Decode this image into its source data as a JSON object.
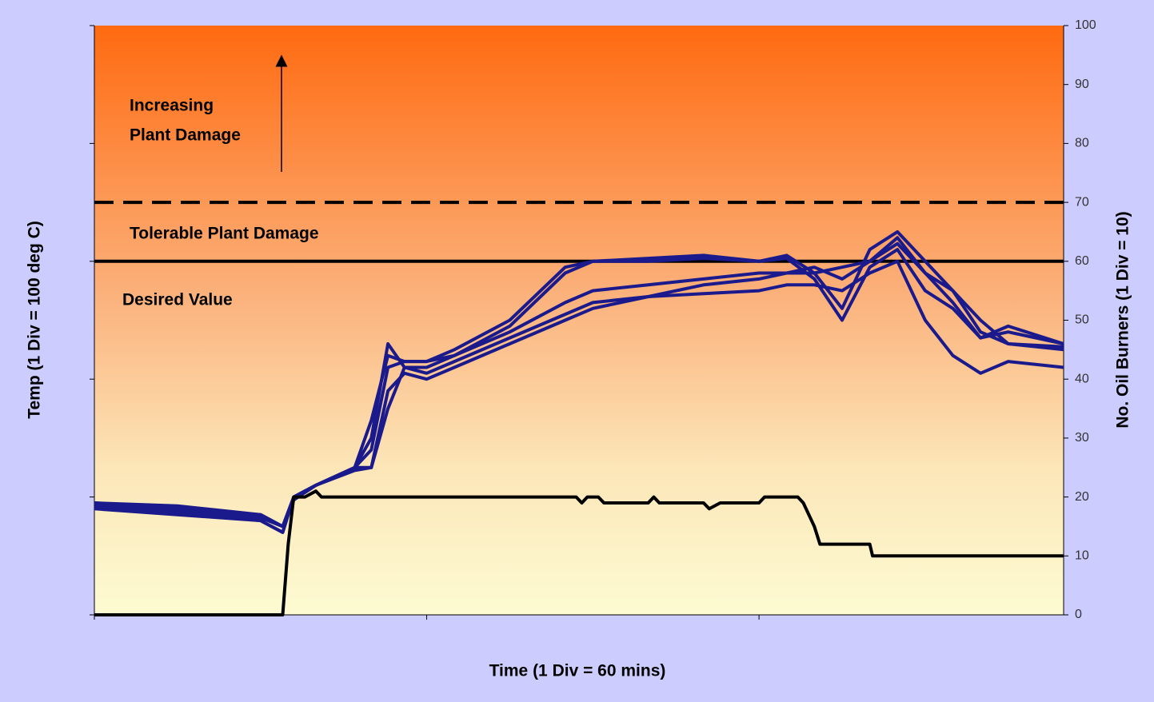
{
  "chart_data": {
    "type": "line",
    "x_label": "Time (1 Div = 60 mins)",
    "y_label": "Temp (1 Div = 100 deg C)",
    "y2_label": "No. Oil Burners (1 Div = 10)",
    "xlim": [
      0,
      175
    ],
    "xticks": [
      0,
      60,
      120
    ],
    "ylim": [
      0,
      100
    ],
    "yticks": [
      0,
      20,
      40,
      60,
      80,
      100
    ],
    "y2lim": [
      0,
      100
    ],
    "y2ticks": [
      0,
      10,
      20,
      30,
      40,
      50,
      60,
      70,
      80,
      90,
      100
    ],
    "x": [
      0,
      15,
      30,
      34,
      36,
      40,
      47,
      50,
      53,
      56,
      60,
      65,
      75,
      85,
      90,
      100,
      110,
      120,
      125,
      130,
      135,
      140,
      145,
      150,
      155,
      160,
      165,
      175
    ],
    "series": [
      {
        "color": "#1a1a8c",
        "values": [
          19,
          18.5,
          17,
          15,
          20,
          22,
          25,
          33,
          44,
          43,
          43,
          45,
          50,
          59,
          60,
          60.5,
          61,
          60,
          60.5,
          57,
          50,
          59,
          62,
          55,
          52,
          47,
          48,
          46
        ]
      },
      {
        "color": "#1a1a8c",
        "values": [
          19,
          18,
          16.5,
          15,
          19.5,
          22,
          25,
          30,
          46,
          42,
          42,
          44,
          49,
          58,
          60,
          60,
          60.5,
          60,
          61,
          58,
          52,
          62,
          65,
          60,
          55,
          50,
          46,
          45.5
        ]
      },
      {
        "color": "#1a1a8c",
        "values": [
          18.5,
          17.5,
          16,
          14,
          20,
          22,
          25,
          25,
          38,
          41,
          40,
          42,
          46,
          50,
          52,
          54,
          56,
          57,
          58,
          58,
          59,
          60,
          63,
          58,
          55,
          48,
          46,
          45
        ]
      },
      {
        "color": "#1a1a8c",
        "values": [
          18,
          17,
          16,
          14,
          20,
          22,
          24.5,
          25,
          35,
          42,
          41,
          43,
          47,
          51,
          53,
          54,
          54.5,
          55,
          56,
          56,
          55,
          58,
          60,
          50,
          44,
          41,
          43,
          42
        ]
      },
      {
        "color": "#1a1a8c",
        "values": [
          19,
          18,
          17,
          15,
          20,
          22,
          25,
          28,
          42,
          43,
          43,
          44,
          48,
          53,
          55,
          56,
          57,
          58,
          58,
          59,
          57,
          60,
          64,
          58,
          53,
          47,
          49,
          46
        ]
      },
      {
        "color": "#000000",
        "axis": "y2",
        "x": [
          0,
          34,
          35,
          36,
          38,
          40,
          41,
          87,
          88,
          89,
          91,
          92,
          100,
          101,
          102,
          110,
          111,
          113,
          120,
          121,
          127,
          128,
          130,
          131,
          140,
          140.5,
          175
        ],
        "values": [
          0,
          0,
          12,
          20,
          20,
          21,
          20,
          20,
          19,
          20,
          20,
          19,
          19,
          20,
          19,
          19,
          18,
          19,
          19,
          20,
          20,
          19,
          15,
          12,
          12,
          10,
          10
        ]
      }
    ],
    "reference_lines": [
      {
        "value": 70,
        "style": "dashed"
      },
      {
        "value": 60,
        "style": "solid"
      }
    ],
    "annotations": [
      "Increasing",
      "Plant Damage",
      "Tolerable Plant Damage",
      "Desired Value"
    ]
  }
}
